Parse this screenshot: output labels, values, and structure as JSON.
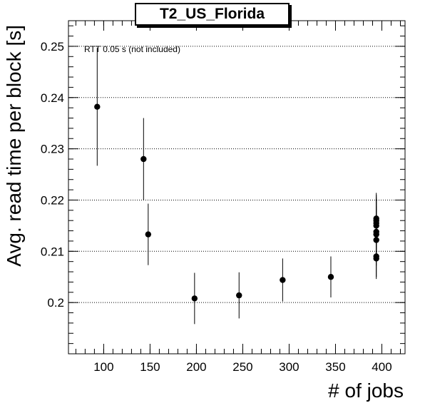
{
  "chart_data": {
    "type": "scatter",
    "title": "T2_US_Florida",
    "xlabel": "# of jobs",
    "ylabel": "Avg. read time per block [s]",
    "annotation": "RTT 0.05 s (not included)",
    "xlim": [
      62,
      425
    ],
    "ylim": [
      0.19,
      0.255
    ],
    "x_ticks": [
      100,
      150,
      200,
      250,
      300,
      350,
      400
    ],
    "y_ticks": [
      0.2,
      0.21,
      0.22,
      0.23,
      0.24,
      0.25
    ],
    "y_tick_labels": [
      "0.2",
      "0.21",
      "0.22",
      "0.23",
      "0.24",
      "0.25"
    ],
    "grid": "horizontal-dotted",
    "points": [
      {
        "x": 93,
        "y": 0.2382,
        "err": 0.0115
      },
      {
        "x": 143,
        "y": 0.228,
        "err": 0.008
      },
      {
        "x": 148,
        "y": 0.2133,
        "err": 0.006
      },
      {
        "x": 198,
        "y": 0.2008,
        "err": 0.005
      },
      {
        "x": 246,
        "y": 0.2014,
        "err": 0.0045
      },
      {
        "x": 293,
        "y": 0.2044,
        "err": 0.0042
      },
      {
        "x": 345,
        "y": 0.205,
        "err": 0.004
      },
      {
        "x": 394,
        "y": 0.2164,
        "err": 0.005
      },
      {
        "x": 394,
        "y": 0.216,
        "err": 0.005
      },
      {
        "x": 394,
        "y": 0.2155,
        "err": 0.005
      },
      {
        "x": 394,
        "y": 0.215,
        "err": 0.005
      },
      {
        "x": 394,
        "y": 0.2138,
        "err": 0.005
      },
      {
        "x": 394,
        "y": 0.2133,
        "err": 0.005
      },
      {
        "x": 394,
        "y": 0.2122,
        "err": 0.005
      },
      {
        "x": 394,
        "y": 0.209,
        "err": 0.004
      },
      {
        "x": 394,
        "y": 0.2086,
        "err": 0.004
      }
    ]
  }
}
